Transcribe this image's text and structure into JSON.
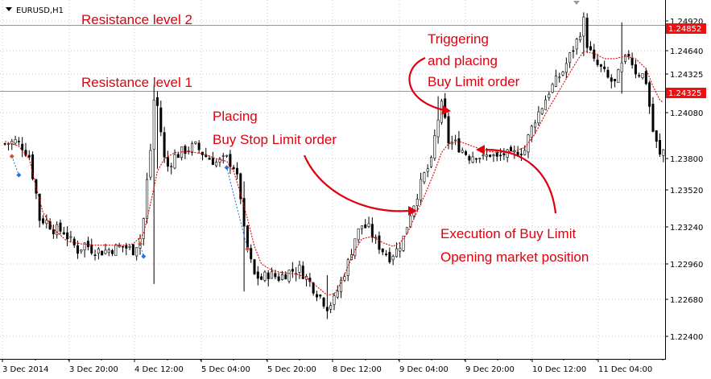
{
  "window": {
    "symbol_label": "EURUSD,H1",
    "dropdown_icon": "triangle-down-icon",
    "shift_marker_icon": "triangle-down-icon"
  },
  "colors": {
    "background": "#ffffff",
    "grid": "#c8c8c8",
    "candle": "#000000",
    "moving_average": "#e00000",
    "levels": "#f07070",
    "price_tag": "#f01010",
    "annotations": "#e0000f",
    "markers_buy": "#1e78dc",
    "markers_sell": "#e05028"
  },
  "chart_data": {
    "type": "candlestick",
    "symbol": "EURUSD",
    "timeframe": "H1",
    "grid": true,
    "ylim": [
      1.2222,
      1.2505
    ],
    "y_ticks": [
      "1.24920",
      "1.24640",
      "1.24325",
      "1.24080",
      "1.23800",
      "1.23520",
      "1.23240",
      "1.22960",
      "1.22680",
      "1.22400"
    ],
    "x_ticks": [
      "3 Dec 2014",
      "3 Dec 20:00",
      "4 Dec 12:00",
      "5 Dec 04:00",
      "5 Dec 20:00",
      "8 Dec 12:00",
      "9 Dec 04:00",
      "9 Dec 20:00",
      "10 Dec 12:00",
      "11 Dec 04:00"
    ],
    "levels": [
      {
        "label": "Resistance level 2",
        "price": 1.24852,
        "tag": "1.24852"
      },
      {
        "label": "Resistance level 1",
        "price": 1.24325,
        "tag": "1.24325"
      }
    ],
    "annotations": [
      {
        "text": [
          "Triggering",
          "and placing",
          "Buy Limit order"
        ]
      },
      {
        "text": [
          "Placing",
          "Buy Stop Limit order"
        ]
      },
      {
        "text": [
          "Execution of Buy Limit",
          "Opening market position"
        ]
      }
    ],
    "close_path": [
      [
        0,
        1.239
      ],
      [
        3,
        1.2392
      ],
      [
        5,
        1.2388
      ],
      [
        7,
        1.238
      ],
      [
        8,
        1.2365
      ],
      [
        9,
        1.235
      ],
      [
        10,
        1.233
      ],
      [
        12,
        1.2328
      ],
      [
        14,
        1.2322
      ],
      [
        17,
        1.232
      ],
      [
        19,
        1.2312
      ],
      [
        21,
        1.2305
      ],
      [
        23,
        1.231
      ],
      [
        25,
        1.2306
      ],
      [
        28,
        1.2304
      ],
      [
        31,
        1.2306
      ],
      [
        34,
        1.2308
      ],
      [
        37,
        1.2305
      ],
      [
        39,
        1.2315
      ],
      [
        40,
        1.233
      ],
      [
        41,
        1.236
      ],
      [
        42,
        1.2385
      ],
      [
        43,
        1.2425
      ],
      [
        44,
        1.242
      ],
      [
        45,
        1.24
      ],
      [
        46,
        1.2378
      ],
      [
        47,
        1.2372
      ],
      [
        49,
        1.238
      ],
      [
        52,
        1.2385
      ],
      [
        55,
        1.2388
      ],
      [
        58,
        1.238
      ],
      [
        61,
        1.2375
      ],
      [
        64,
        1.2378
      ],
      [
        66,
        1.2372
      ],
      [
        67,
        1.2362
      ],
      [
        68,
        1.2348
      ],
      [
        69,
        1.232
      ],
      [
        70,
        1.2305
      ],
      [
        72,
        1.2285
      ],
      [
        74,
        1.2282
      ],
      [
        76,
        1.2286
      ],
      [
        79,
        1.2283
      ],
      [
        82,
        1.2288
      ],
      [
        85,
        1.229
      ],
      [
        87,
        1.2283
      ],
      [
        89,
        1.2275
      ],
      [
        91,
        1.2268
      ],
      [
        93,
        1.226
      ],
      [
        95,
        1.2265
      ],
      [
        97,
        1.228
      ],
      [
        99,
        1.2295
      ],
      [
        101,
        1.2315
      ],
      [
        103,
        1.2325
      ],
      [
        105,
        1.2322
      ],
      [
        107,
        1.2312
      ],
      [
        109,
        1.2305
      ],
      [
        111,
        1.23
      ],
      [
        113,
        1.2305
      ],
      [
        115,
        1.2315
      ],
      [
        117,
        1.2335
      ],
      [
        119,
        1.235
      ],
      [
        121,
        1.2365
      ],
      [
        123,
        1.2375
      ],
      [
        124,
        1.2395
      ],
      [
        125,
        1.241
      ],
      [
        126,
        1.242
      ],
      [
        127,
        1.2408
      ],
      [
        128,
        1.2392
      ],
      [
        130,
        1.239
      ],
      [
        132,
        1.2385
      ],
      [
        134,
        1.238
      ],
      [
        136,
        1.2382
      ],
      [
        138,
        1.2378
      ],
      [
        140,
        1.2382
      ],
      [
        142,
        1.2378
      ],
      [
        144,
        1.2382
      ],
      [
        146,
        1.238
      ],
      [
        148,
        1.2384
      ],
      [
        150,
        1.2385
      ],
      [
        151,
        1.2395
      ],
      [
        153,
        1.241
      ],
      [
        155,
        1.242
      ],
      [
        157,
        1.2432
      ],
      [
        159,
        1.244
      ],
      [
        161,
        1.2448
      ],
      [
        163,
        1.246
      ],
      [
        165,
        1.2472
      ],
      [
        166,
        1.248
      ],
      [
        167,
        1.2488
      ],
      [
        168,
        1.247
      ],
      [
        170,
        1.2455
      ],
      [
        172,
        1.245
      ],
      [
        174,
        1.2442
      ],
      [
        176,
        1.2438
      ],
      [
        178,
        1.2452
      ],
      [
        180,
        1.2462
      ],
      [
        182,
        1.2448
      ],
      [
        184,
        1.2445
      ],
      [
        185,
        1.244
      ],
      [
        186,
        1.242
      ],
      [
        187,
        1.24
      ],
      [
        188,
        1.239
      ],
      [
        189,
        1.238
      ],
      [
        190,
        1.2385
      ]
    ],
    "ma_path": [
      [
        0,
        1.2392
      ],
      [
        4,
        1.2388
      ],
      [
        7,
        1.2378
      ],
      [
        9,
        1.2355
      ],
      [
        11,
        1.2335
      ],
      [
        14,
        1.2322
      ],
      [
        18,
        1.2312
      ],
      [
        22,
        1.231
      ],
      [
        26,
        1.2309
      ],
      [
        30,
        1.2309
      ],
      [
        34,
        1.2309
      ],
      [
        37,
        1.231
      ],
      [
        40,
        1.2318
      ],
      [
        42,
        1.2342
      ],
      [
        44,
        1.2368
      ],
      [
        46,
        1.2378
      ],
      [
        49,
        1.2383
      ],
      [
        53,
        1.2384
      ],
      [
        57,
        1.2382
      ],
      [
        61,
        1.2378
      ],
      [
        64,
        1.2376
      ],
      [
        66,
        1.2368
      ],
      [
        68,
        1.235
      ],
      [
        70,
        1.233
      ],
      [
        72,
        1.2308
      ],
      [
        74,
        1.2294
      ],
      [
        77,
        1.2289
      ],
      [
        80,
        1.2287
      ],
      [
        84,
        1.2286
      ],
      [
        87,
        1.2283
      ],
      [
        90,
        1.2276
      ],
      [
        93,
        1.2269
      ],
      [
        95,
        1.227
      ],
      [
        97,
        1.2279
      ],
      [
        99,
        1.2292
      ],
      [
        101,
        1.2305
      ],
      [
        103,
        1.2314
      ],
      [
        106,
        1.2316
      ],
      [
        109,
        1.2311
      ],
      [
        112,
        1.2308
      ],
      [
        114,
        1.2311
      ],
      [
        116,
        1.2318
      ],
      [
        118,
        1.233
      ],
      [
        121,
        1.2348
      ],
      [
        124,
        1.2368
      ],
      [
        126,
        1.2383
      ],
      [
        128,
        1.239
      ],
      [
        131,
        1.2392
      ],
      [
        135,
        1.2388
      ],
      [
        139,
        1.2384
      ],
      [
        143,
        1.2383
      ],
      [
        147,
        1.2384
      ],
      [
        150,
        1.2387
      ],
      [
        153,
        1.2398
      ],
      [
        156,
        1.2414
      ],
      [
        159,
        1.2428
      ],
      [
        162,
        1.2442
      ],
      [
        165,
        1.2456
      ],
      [
        167,
        1.2464
      ],
      [
        170,
        1.2462
      ],
      [
        173,
        1.2458
      ],
      [
        176,
        1.2458
      ],
      [
        179,
        1.246
      ],
      [
        182,
        1.2458
      ],
      [
        185,
        1.245
      ],
      [
        187,
        1.2436
      ],
      [
        189,
        1.2425
      ],
      [
        190,
        1.2423
      ]
    ],
    "spikes": [
      {
        "i": 43,
        "high": 1.2437,
        "low": 1.2278
      },
      {
        "i": 44,
        "high": 1.2432,
        "low": 1.237
      },
      {
        "i": 125,
        "high": 1.2428,
        "low": 1.2395
      },
      {
        "i": 167,
        "high": 1.2495,
        "low": 1.246
      },
      {
        "i": 178,
        "high": 1.2487,
        "low": 1.243
      },
      {
        "i": 93,
        "high": 1.2285,
        "low": 1.225
      },
      {
        "i": 69,
        "high": 1.236,
        "low": 1.2272
      }
    ],
    "buy_markers": [
      {
        "i": 4,
        "price": 1.2365
      },
      {
        "i": 40,
        "price": 1.23
      },
      {
        "i": 64,
        "price": 1.2371
      }
    ],
    "sell_markers": [
      {
        "i": 2,
        "price": 1.238
      },
      {
        "i": 39,
        "price": 1.231
      },
      {
        "i": 70,
        "price": 1.2306
      }
    ]
  }
}
